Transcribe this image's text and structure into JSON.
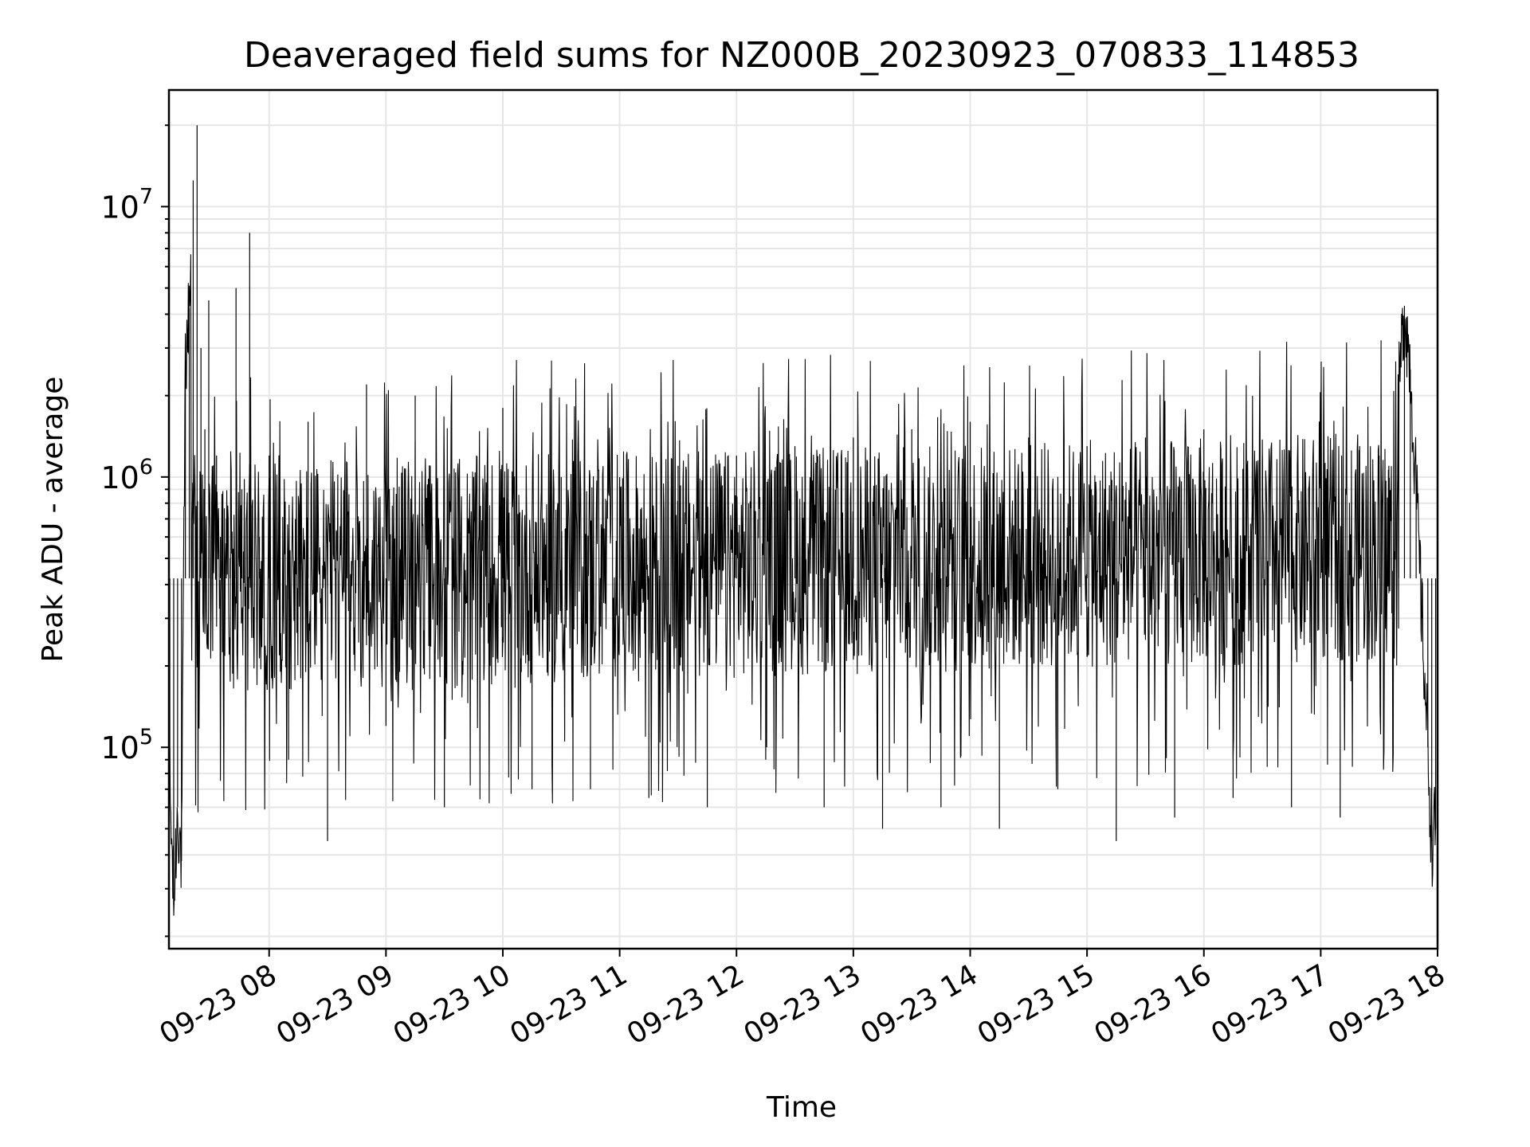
{
  "chart_data": {
    "type": "line",
    "title": "Deaveraged field sums for NZ000B_20230923_070833_114853",
    "xlabel": "Time",
    "ylabel": "Peak ADU - average",
    "yscale": "log",
    "xlim": [
      "2023-09-23 07:08:33",
      "2023-09-23 18:00:00"
    ],
    "ylim": [
      18000,
      27000000
    ],
    "grid": true,
    "line_color": "#000000",
    "grid_color": "#e6e6e6",
    "x_ticks": [
      {
        "value": "2023-09-23 08:00",
        "label": "09-23 08"
      },
      {
        "value": "2023-09-23 09:00",
        "label": "09-23 09"
      },
      {
        "value": "2023-09-23 10:00",
        "label": "09-23 10"
      },
      {
        "value": "2023-09-23 11:00",
        "label": "09-23 11"
      },
      {
        "value": "2023-09-23 12:00",
        "label": "09-23 12"
      },
      {
        "value": "2023-09-23 13:00",
        "label": "09-23 13"
      },
      {
        "value": "2023-09-23 14:00",
        "label": "09-23 14"
      },
      {
        "value": "2023-09-23 15:00",
        "label": "09-23 15"
      },
      {
        "value": "2023-09-23 16:00",
        "label": "09-23 16"
      },
      {
        "value": "2023-09-23 17:00",
        "label": "09-23 17"
      },
      {
        "value": "2023-09-23 18:00",
        "label": "09-23 18"
      }
    ],
    "y_ticks": [
      {
        "value": 100000,
        "base": "10",
        "exp": "5"
      },
      {
        "value": 1000000,
        "base": "10",
        "exp": "6"
      },
      {
        "value": 10000000,
        "base": "10",
        "exp": "7"
      }
    ],
    "series": [
      {
        "x": [
          "07:09",
          "07:11",
          "07:13",
          "07:15",
          "07:17",
          "07:19",
          "07:21",
          "07:23",
          "07:25",
          "07:27",
          "07:29",
          "07:31",
          "07:33",
          "07:35",
          "07:38",
          "07:40",
          "07:43",
          "07:46",
          "07:50",
          "07:55",
          "08:00",
          "08:10",
          "08:20",
          "08:30",
          "08:40",
          "08:50",
          "09:00",
          "09:15",
          "09:30",
          "09:45",
          "10:00",
          "10:15",
          "10:30",
          "10:45",
          "11:00",
          "11:15",
          "11:30",
          "11:45",
          "12:00",
          "12:15",
          "12:30",
          "12:45",
          "13:00",
          "13:15",
          "13:30",
          "13:45",
          "14:00",
          "14:15",
          "14:30",
          "14:45",
          "15:00",
          "15:15",
          "15:30",
          "15:45",
          "16:00",
          "16:15",
          "16:30",
          "16:45",
          "17:00",
          "17:10",
          "17:20",
          "17:30",
          "17:35",
          "17:40",
          "17:43",
          "17:46",
          "17:49",
          "17:52",
          "17:55",
          "17:57",
          "17:59"
        ],
        "y": [
          70000,
          26000,
          60000,
          38000,
          2600000,
          4200000,
          12500000,
          20000000,
          3000000,
          1500000,
          4500000,
          900000,
          1200000,
          600000,
          700000,
          500000,
          5000000,
          900000,
          8000000,
          600000,
          1200000,
          90000,
          1600000,
          45000,
          1000000,
          2200000,
          120000,
          2000000,
          60000,
          1000000,
          1800000,
          70000,
          1000000,
          70000,
          1000000,
          65000,
          1100000,
          60000,
          1200000,
          90000,
          1300000,
          60000,
          1400000,
          50000,
          1500000,
          60000,
          1600000,
          50000,
          1400000,
          70000,
          1300000,
          45000,
          1400000,
          55000,
          1500000,
          65000,
          1200000,
          60000,
          2000000,
          55000,
          1300000,
          1200000,
          1100000,
          2000000,
          4300000,
          2500000,
          900000,
          300000,
          100000,
          45000,
          50000
        ]
      }
    ],
    "noise_band_log10": [
      5.2,
      6.05
    ]
  }
}
